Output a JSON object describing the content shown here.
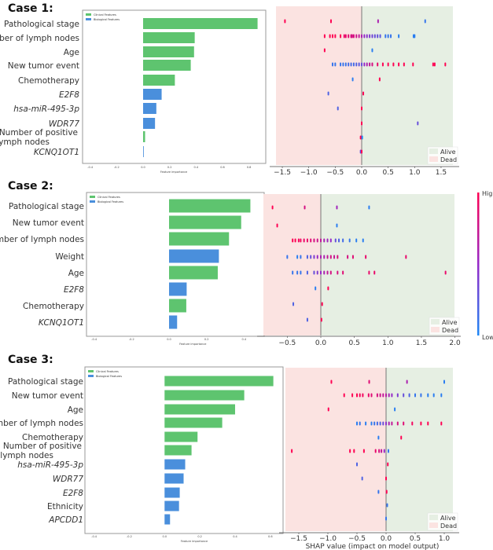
{
  "colors": {
    "clinical": "#5ec46f",
    "biological": "#4a8fdc",
    "shap_low": "#1e88f5",
    "shap_high": "#ff0052",
    "alive_bg": "#e6efe3",
    "dead_bg": "#fbe3e1"
  },
  "legend": {
    "clinical": "Clinical Features",
    "biological": "Biological Features",
    "alive": "Alive",
    "dead": "Dead"
  },
  "colorbar": {
    "high": "High",
    "low": "Low"
  },
  "chart_data": [
    {
      "case": "Case 1:",
      "type": "bar",
      "orientation": "horizontal",
      "xlabel": "Feature importance",
      "xticks": [
        "-0.4",
        "-0.2",
        "0.0",
        "0.2",
        "0.4",
        "0.6",
        "0.8"
      ],
      "features": [
        {
          "label": "Pathological stage",
          "value": 0.865,
          "group": "clinical"
        },
        {
          "label": "Number of lymph nodes",
          "value": 0.39,
          "group": "clinical"
        },
        {
          "label": "Age",
          "value": 0.385,
          "group": "clinical"
        },
        {
          "label": "New tumor event",
          "value": 0.36,
          "group": "clinical"
        },
        {
          "label": "Chemotherapy",
          "value": 0.24,
          "group": "clinical"
        },
        {
          "label": "E2F8",
          "value": 0.14,
          "group": "biological",
          "gene": true
        },
        {
          "label": "hsa-miR-495-3p",
          "value": 0.1,
          "group": "biological",
          "gene": true
        },
        {
          "label": "WDR77",
          "value": 0.09,
          "group": "biological",
          "gene": true
        },
        {
          "label": "Number of positive lymph nodes",
          "value": 0.015,
          "group": "clinical"
        },
        {
          "label": "KCNQ1OT1",
          "value": 0.005,
          "group": "biological",
          "gene": true
        }
      ],
      "shap": {
        "type": "scatter",
        "xticks": [
          "-1.5",
          "-1.0",
          "-0.5",
          "0.0",
          "0.5",
          "1.0",
          "1.5"
        ],
        "xlabel": "",
        "rows": [
          [
            [
              -1.45,
              1
            ],
            [
              -0.58,
              1
            ],
            [
              0.31,
              0.6
            ],
            [
              1.2,
              0.1
            ]
          ],
          [
            [
              -0.7,
              1
            ],
            [
              -0.6,
              1
            ],
            [
              -0.55,
              1
            ],
            [
              -0.5,
              1
            ],
            [
              -0.4,
              1
            ],
            [
              -0.33,
              0.9
            ],
            [
              -0.3,
              0.9
            ],
            [
              -0.25,
              0.85
            ],
            [
              -0.2,
              0.8
            ],
            [
              -0.18,
              0.8
            ],
            [
              -0.15,
              0.8
            ],
            [
              -0.1,
              0.75
            ],
            [
              -0.05,
              0.7
            ],
            [
              0,
              0.6
            ],
            [
              0.05,
              0.5
            ],
            [
              0.1,
              0.45
            ],
            [
              0.15,
              0.4
            ],
            [
              0.2,
              0.35
            ],
            [
              0.25,
              0.3
            ],
            [
              0.3,
              0.3
            ],
            [
              0.35,
              0.25
            ],
            [
              0.45,
              0.1
            ],
            [
              0.5,
              0.1
            ],
            [
              0.55,
              0.1
            ],
            [
              0.7,
              0.05
            ],
            [
              0.98,
              0.05
            ],
            [
              1.0,
              0.05
            ]
          ],
          [
            [
              -0.7,
              1
            ],
            [
              0.2,
              0.05
            ]
          ],
          [
            [
              -0.55,
              0.1
            ],
            [
              -0.5,
              0.1
            ],
            [
              -0.4,
              0.1
            ],
            [
              -0.35,
              0.1
            ],
            [
              -0.3,
              0.1
            ],
            [
              -0.25,
              0.15
            ],
            [
              -0.2,
              0.15
            ],
            [
              -0.15,
              0.15
            ],
            [
              -0.1,
              0.2
            ],
            [
              -0.05,
              0.25
            ],
            [
              0,
              0.3
            ],
            [
              0.05,
              0.5
            ],
            [
              0.1,
              0.6
            ],
            [
              0.15,
              0.7
            ],
            [
              0.2,
              0.8
            ],
            [
              0.3,
              0.9
            ],
            [
              0.4,
              1
            ],
            [
              0.5,
              1
            ],
            [
              0.6,
              1
            ],
            [
              0.7,
              1
            ],
            [
              0.8,
              1
            ],
            [
              0.97,
              1
            ],
            [
              1.35,
              1
            ],
            [
              1.38,
              1
            ],
            [
              1.58,
              1
            ]
          ],
          [
            [
              -0.17,
              0.05
            ],
            [
              0.34,
              1
            ]
          ],
          [
            [
              -0.63,
              0.2
            ],
            [
              0.03,
              1
            ]
          ],
          [
            [
              -0.45,
              0.2
            ],
            [
              0,
              1
            ]
          ],
          [
            [
              0,
              1
            ],
            [
              1.06,
              0.3
            ]
          ],
          [
            [
              -0.02,
              1
            ],
            [
              0.01,
              0
            ]
          ],
          [
            [
              -0.02,
              0.3
            ],
            [
              0,
              1
            ]
          ]
        ]
      }
    },
    {
      "case": "Case 2:",
      "type": "bar",
      "orientation": "horizontal",
      "xlabel": "Feature importance",
      "xticks": [
        "-0.4",
        "-0.2",
        "0.0",
        "0.2",
        "0.4"
      ],
      "features": [
        {
          "label": "Pathological stage",
          "value": 0.434,
          "group": "clinical"
        },
        {
          "label": "New tumor event",
          "value": 0.385,
          "group": "clinical"
        },
        {
          "label": "Number of lymph nodes",
          "value": 0.32,
          "group": "clinical"
        },
        {
          "label": "Weight",
          "value": 0.266,
          "group": "biological"
        },
        {
          "label": "Age",
          "value": 0.26,
          "group": "clinical"
        },
        {
          "label": "E2F8",
          "value": 0.094,
          "group": "biological",
          "gene": true
        },
        {
          "label": "Chemotherapy",
          "value": 0.092,
          "group": "clinical"
        },
        {
          "label": "KCNQ1OT1",
          "value": 0.043,
          "group": "biological",
          "gene": true
        }
      ],
      "shap": {
        "type": "scatter",
        "xticks": [
          "-0.5",
          "0.0",
          "0.5",
          "1.0",
          "1.5",
          "2.0"
        ],
        "xlabel": "",
        "rows": [
          [
            [
              -0.72,
              1
            ],
            [
              -0.24,
              0.8
            ],
            [
              0.24,
              0.55
            ],
            [
              0.72,
              0.05
            ]
          ],
          [
            [
              -0.65,
              1
            ],
            [
              0.24,
              0.05
            ]
          ],
          [
            [
              -0.42,
              1
            ],
            [
              -0.38,
              1
            ],
            [
              -0.33,
              0.95
            ],
            [
              -0.3,
              0.95
            ],
            [
              -0.25,
              0.9
            ],
            [
              -0.2,
              0.9
            ],
            [
              -0.15,
              0.85
            ],
            [
              -0.1,
              0.8
            ],
            [
              -0.05,
              0.75
            ],
            [
              0,
              0.7
            ],
            [
              0.05,
              0.6
            ],
            [
              0.1,
              0.55
            ],
            [
              0.15,
              0.5
            ],
            [
              0.22,
              0.3
            ],
            [
              0.27,
              0.2
            ],
            [
              0.33,
              0.15
            ],
            [
              0.43,
              0.1
            ],
            [
              0.53,
              0.05
            ],
            [
              0.63,
              0.05
            ]
          ],
          [
            [
              -0.5,
              0.1
            ],
            [
              -0.35,
              0.05
            ],
            [
              -0.3,
              0.1
            ],
            [
              -0.2,
              0.2
            ],
            [
              -0.15,
              0.3
            ],
            [
              -0.1,
              0.4
            ],
            [
              -0.05,
              0.5
            ],
            [
              0,
              0.6
            ],
            [
              0.05,
              0.6
            ],
            [
              0.1,
              0.7
            ],
            [
              0.15,
              0.8
            ],
            [
              0.2,
              0.7
            ],
            [
              0.25,
              0.8
            ],
            [
              0.4,
              0.8
            ],
            [
              0.48,
              0.85
            ],
            [
              0.67,
              0.9
            ],
            [
              1.27,
              0.9
            ]
          ],
          [
            [
              -0.42,
              0.1
            ],
            [
              -0.35,
              0.1
            ],
            [
              -0.3,
              0.1
            ],
            [
              -0.2,
              0.2
            ],
            [
              -0.1,
              0.3
            ],
            [
              -0.05,
              0.4
            ],
            [
              0,
              0.5
            ],
            [
              0.05,
              0.6
            ],
            [
              0.1,
              0.7
            ],
            [
              0.15,
              0.8
            ],
            [
              0.25,
              0.8
            ],
            [
              0.33,
              0.85
            ],
            [
              0.72,
              0.9
            ],
            [
              0.8,
              0.9
            ],
            [
              1.86,
              0.9
            ]
          ],
          [
            [
              -0.08,
              0.05
            ],
            [
              0.11,
              1
            ]
          ],
          [
            [
              -0.41,
              0.2
            ],
            [
              0.02,
              1
            ]
          ],
          [
            [
              -0.2,
              0.2
            ],
            [
              0.01,
              1
            ]
          ]
        ]
      }
    },
    {
      "case": "Case 3:",
      "type": "bar",
      "orientation": "horizontal",
      "xlabel": "Feature importance",
      "xticks": [
        "-0.4",
        "-0.2",
        "0.0",
        "0.2",
        "0.4",
        "0.6"
      ],
      "features": [
        {
          "label": "Pathological stage",
          "value": 0.617,
          "group": "clinical"
        },
        {
          "label": "New tumor event",
          "value": 0.452,
          "group": "clinical"
        },
        {
          "label": "Age",
          "value": 0.4,
          "group": "clinical"
        },
        {
          "label": "Number of lymph nodes",
          "value": 0.327,
          "group": "clinical"
        },
        {
          "label": "Chemotherapy",
          "value": 0.187,
          "group": "clinical"
        },
        {
          "label": "Number of positive lymph nodes",
          "value": 0.153,
          "group": "clinical"
        },
        {
          "label": "hsa-miR-495-3p",
          "value": 0.117,
          "group": "biological",
          "gene": true
        },
        {
          "label": "WDR77",
          "value": 0.108,
          "group": "biological",
          "gene": true
        },
        {
          "label": "E2F8",
          "value": 0.086,
          "group": "biological",
          "gene": true
        },
        {
          "label": "Ethnicity",
          "value": 0.082,
          "group": "biological"
        },
        {
          "label": "APCDD1",
          "value": 0.031,
          "group": "biological",
          "gene": true
        }
      ],
      "shap": {
        "type": "scatter",
        "xticks": [
          "-1.5",
          "-1.0",
          "-0.5",
          "0.0",
          "0.5",
          "1.0"
        ],
        "xlabel": "SHAP value (impact on model output)",
        "rows": [
          [
            [
              -0.94,
              1
            ],
            [
              -0.29,
              0.85
            ],
            [
              0.36,
              0.6
            ],
            [
              1.0,
              0.05
            ]
          ],
          [
            [
              -0.72,
              1
            ],
            [
              -0.58,
              1
            ],
            [
              -0.5,
              1
            ],
            [
              -0.45,
              0.95
            ],
            [
              -0.4,
              0.95
            ],
            [
              -0.3,
              0.9
            ],
            [
              -0.25,
              0.85
            ],
            [
              -0.15,
              0.8
            ],
            [
              -0.1,
              0.75
            ],
            [
              -0.05,
              0.7
            ],
            [
              0,
              0.65
            ],
            [
              0.05,
              0.6
            ],
            [
              0.1,
              0.5
            ],
            [
              0.2,
              0.4
            ],
            [
              0.3,
              0.3
            ],
            [
              0.4,
              0.2
            ],
            [
              0.5,
              0.1
            ],
            [
              0.6,
              0.1
            ],
            [
              0.72,
              0.05
            ],
            [
              0.82,
              0.05
            ],
            [
              0.95,
              0.05
            ]
          ],
          [
            [
              -0.99,
              1
            ],
            [
              0.15,
              0.05
            ]
          ],
          [
            [
              -0.5,
              0.05
            ],
            [
              -0.45,
              0.1
            ],
            [
              -0.35,
              0.05
            ],
            [
              -0.25,
              0.05
            ],
            [
              -0.2,
              0.1
            ],
            [
              -0.15,
              0.15
            ],
            [
              -0.1,
              0.2
            ],
            [
              -0.05,
              0.3
            ],
            [
              0,
              0.45
            ],
            [
              0.05,
              0.6
            ],
            [
              0.1,
              0.7
            ],
            [
              0.2,
              0.8
            ],
            [
              0.3,
              0.85
            ],
            [
              0.45,
              0.95
            ],
            [
              0.6,
              1
            ],
            [
              0.72,
              1
            ],
            [
              0.95,
              1
            ]
          ],
          [
            [
              -0.13,
              0.05
            ],
            [
              0.26,
              1
            ]
          ],
          [
            [
              -1.62,
              1
            ],
            [
              -0.62,
              1
            ],
            [
              -0.55,
              1
            ],
            [
              -0.38,
              1
            ],
            [
              -0.18,
              0.9
            ],
            [
              -0.12,
              0.8
            ],
            [
              -0.08,
              0.7
            ],
            [
              -0.03,
              0.5
            ],
            [
              0.04,
              0.1
            ]
          ],
          [
            [
              -0.5,
              0.2
            ],
            [
              0.03,
              1
            ]
          ],
          [
            [
              -0.41,
              0.2
            ],
            [
              0,
              1
            ]
          ],
          [
            [
              -0.13,
              0.1
            ],
            [
              0.01,
              1
            ]
          ],
          [
            [
              0.02,
              0.1
            ]
          ],
          [
            [
              0,
              0.1
            ]
          ]
        ]
      }
    }
  ]
}
